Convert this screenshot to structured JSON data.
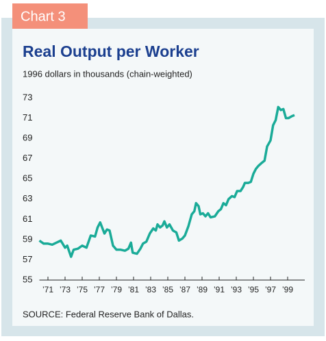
{
  "tab": "Chart 3",
  "chart_data": {
    "type": "line",
    "title": "Real Output per Worker",
    "subtitle": "1996 dollars in thousands (chain-weighted)",
    "source": "SOURCE: Federal Reserve Bank of Dallas.",
    "x": [
      1970.0,
      1970.5,
      1971.0,
      1971.5,
      1972.0,
      1972.5,
      1973.0,
      1973.25,
      1973.7,
      1974.0,
      1974.5,
      1975.0,
      1975.5,
      1976.0,
      1976.5,
      1976.8,
      1977.1,
      1977.6,
      1977.9,
      1978.2,
      1978.6,
      1979.0,
      1979.5,
      1980.0,
      1980.4,
      1980.7,
      1980.9,
      1981.4,
      1981.8,
      1982.1,
      1982.5,
      1982.9,
      1983.3,
      1983.6,
      1983.8,
      1984.1,
      1984.4,
      1984.6,
      1984.9,
      1985.2,
      1985.6,
      1986.0,
      1986.3,
      1986.7,
      1987.0,
      1987.4,
      1987.8,
      1988.1,
      1988.3,
      1988.6,
      1988.8,
      1989.1,
      1989.4,
      1989.7,
      1990.0,
      1990.5,
      1990.9,
      1991.2,
      1991.5,
      1991.8,
      1992.1,
      1992.5,
      1992.8,
      1993.1,
      1993.5,
      1993.8,
      1994.0,
      1994.4,
      1994.7,
      1995.0,
      1995.3,
      1995.6,
      1996.0,
      1996.3,
      1996.6,
      1997.0,
      1997.3,
      1997.6,
      1997.9,
      1998.2,
      1998.5,
      1998.8,
      1999.1,
      1999.5,
      1999.8
    ],
    "series": [
      {
        "color": "#1aab98",
        "values": [
          58.9,
          58.6,
          58.6,
          58.5,
          58.7,
          58.9,
          58.2,
          58.4,
          57.3,
          58.0,
          58.1,
          58.4,
          58.2,
          59.4,
          59.3,
          60.2,
          60.7,
          59.6,
          60.0,
          59.9,
          58.4,
          58.0,
          58.0,
          57.9,
          58.1,
          58.7,
          57.7,
          57.6,
          58.1,
          58.6,
          58.8,
          59.6,
          60.1,
          59.9,
          60.5,
          60.2,
          60.4,
          60.8,
          60.2,
          60.5,
          59.9,
          59.7,
          58.9,
          59.1,
          59.4,
          60.3,
          61.5,
          61.8,
          62.6,
          62.3,
          61.5,
          61.6,
          61.3,
          61.6,
          61.2,
          61.3,
          61.8,
          62.0,
          62.6,
          62.4,
          63.0,
          63.3,
          63.2,
          63.8,
          63.8,
          64.2,
          64.6,
          64.6,
          64.7,
          65.5,
          66.0,
          66.3,
          66.6,
          66.8,
          68.2,
          68.8,
          70.3,
          70.8,
          72.1,
          71.8,
          71.9,
          71.0,
          71.0,
          71.2,
          71.3
        ]
      }
    ],
    "xlim": [
      1970,
      2001
    ],
    "xticks": [
      {
        "value": 1971,
        "label": "’71"
      },
      {
        "value": 1973,
        "label": "’73"
      },
      {
        "value": 1975,
        "label": "’75"
      },
      {
        "value": 1977,
        "label": "’77"
      },
      {
        "value": 1979,
        "label": "’79"
      },
      {
        "value": 1981,
        "label": "’81"
      },
      {
        "value": 1983,
        "label": "’83"
      },
      {
        "value": 1985,
        "label": "’85"
      },
      {
        "value": 1987,
        "label": "’87"
      },
      {
        "value": 1989,
        "label": "’89"
      },
      {
        "value": 1991,
        "label": "’91"
      },
      {
        "value": 1993,
        "label": "’93"
      },
      {
        "value": 1995,
        "label": "’95"
      },
      {
        "value": 1997,
        "label": "’97"
      },
      {
        "value": 1999,
        "label": "’99"
      }
    ],
    "ylim": [
      55,
      73
    ],
    "yticks": [
      55,
      57,
      59,
      61,
      63,
      65,
      67,
      69,
      71,
      73
    ]
  }
}
